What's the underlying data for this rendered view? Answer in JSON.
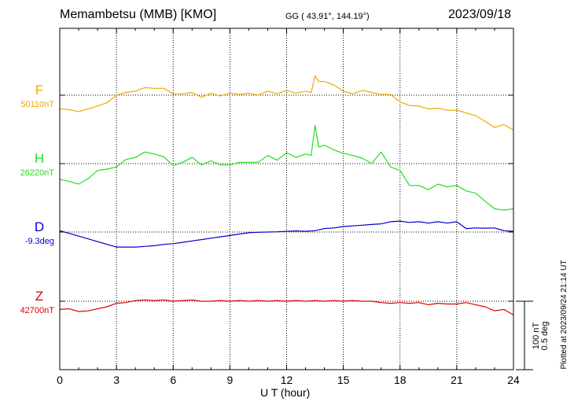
{
  "header": {
    "station": "Memambetsu (MMB)  [KMO]",
    "coords": "GG ( 43.91°, 144.19°)",
    "date": "2023/09/18"
  },
  "footer": {
    "plotted_note": "Plotted at 2023/09/24 21:14 UT"
  },
  "scale_bar": {
    "line1": "100 nT",
    "line2": "0.5 deg"
  },
  "chart_data": {
    "type": "line",
    "title": "",
    "xlabel": "U T (hour)",
    "ylabel": "",
    "xlim": [
      0,
      24
    ],
    "x_ticks": [
      0,
      3,
      6,
      9,
      12,
      15,
      18,
      21,
      24
    ],
    "grid": true,
    "series": [
      {
        "name": "F",
        "baseline_label": "50110nT",
        "color": "#f0a800",
        "x": [
          0,
          0.5,
          1,
          1.5,
          2,
          2.5,
          3,
          3.5,
          4,
          4.5,
          5,
          5.5,
          6,
          6.5,
          7,
          7.5,
          8,
          8.5,
          9,
          9.5,
          10,
          10.5,
          11,
          11.5,
          12,
          12.5,
          13,
          13.3,
          13.5,
          13.7,
          14,
          14.5,
          15,
          15.5,
          16,
          16.5,
          17,
          17.5,
          18,
          18.5,
          19,
          19.5,
          20,
          20.5,
          21,
          21.5,
          22,
          22.5,
          23,
          23.5,
          24
        ],
        "values": [
          -20,
          -21,
          -24,
          -20,
          -16,
          -11,
          0,
          4,
          6,
          11,
          10,
          10,
          2,
          2,
          4,
          -3,
          3,
          -1,
          3,
          1,
          3,
          0,
          6,
          2,
          7,
          3,
          6,
          4,
          28,
          20,
          20,
          15,
          6,
          2,
          7,
          4,
          1,
          1,
          -10,
          -15,
          -16,
          -20,
          -19,
          -22,
          -22,
          -26,
          -30,
          -38,
          -47,
          -43,
          -51
        ]
      },
      {
        "name": "H",
        "baseline_label": "26220nT",
        "color": "#22dd22",
        "x": [
          0,
          0.5,
          1,
          1.5,
          2,
          2.5,
          3,
          3.5,
          4,
          4.5,
          5,
          5.5,
          6,
          6.5,
          7,
          7.5,
          8,
          8.5,
          9,
          9.5,
          10,
          10.5,
          11,
          11.5,
          12,
          12.5,
          13,
          13.3,
          13.5,
          13.7,
          14,
          14.5,
          15,
          15.5,
          16,
          16.5,
          17,
          17.5,
          18,
          18.5,
          19,
          19.5,
          20,
          20.5,
          21,
          21.5,
          22,
          22.5,
          23,
          23.5,
          24
        ],
        "values": [
          -23,
          -26,
          -30,
          -22,
          -10,
          -8,
          -5,
          6,
          9,
          17,
          14,
          10,
          -3,
          2,
          9,
          -2,
          4,
          -2,
          -2,
          2,
          2,
          2,
          12,
          5,
          16,
          9,
          14,
          12,
          56,
          24,
          27,
          20,
          15,
          12,
          8,
          0,
          17,
          -5,
          -10,
          -32,
          -32,
          -38,
          -30,
          -34,
          -32,
          -40,
          -43,
          -55,
          -66,
          -68,
          -66
        ]
      },
      {
        "name": "D",
        "baseline_label": "-9.3deg",
        "color": "#0000cc",
        "x": [
          0,
          0.5,
          1,
          1.5,
          2,
          2.5,
          3,
          3.5,
          4,
          4.5,
          5,
          5.5,
          6,
          6.5,
          7,
          7.5,
          8,
          8.5,
          9,
          9.5,
          10,
          10.5,
          11,
          11.5,
          12,
          12.5,
          13,
          13.5,
          14,
          14.5,
          15,
          15.5,
          16,
          16.5,
          17,
          17.5,
          18,
          18.5,
          19,
          19.5,
          20,
          20.5,
          21,
          21.5,
          22,
          22.5,
          23,
          23.5,
          24
        ],
        "values": [
          0.01,
          -0.01,
          -0.03,
          -0.05,
          -0.07,
          -0.09,
          -0.11,
          -0.11,
          -0.11,
          -0.105,
          -0.1,
          -0.09,
          -0.085,
          -0.075,
          -0.065,
          -0.055,
          -0.045,
          -0.035,
          -0.025,
          -0.015,
          -0.005,
          -0.002,
          0,
          0.002,
          0.005,
          0.008,
          0.005,
          0.01,
          0.025,
          0.03,
          0.04,
          0.045,
          0.05,
          0.055,
          0.06,
          0.075,
          0.08,
          0.07,
          0.075,
          0.065,
          0.075,
          0.065,
          0.075,
          0.025,
          0.03,
          0.028,
          0.03,
          0.01,
          0.005
        ]
      },
      {
        "name": "Z",
        "baseline_label": "42700nT",
        "color": "#dd0000",
        "x": [
          0,
          0.5,
          1,
          1.5,
          2,
          2.5,
          3,
          3.5,
          4,
          4.5,
          5,
          5.5,
          6,
          6.5,
          7,
          7.5,
          8,
          8.5,
          9,
          9.5,
          10,
          10.5,
          11,
          11.5,
          12,
          12.5,
          13,
          13.5,
          14,
          14.5,
          15,
          15.5,
          16,
          16.5,
          17,
          17.5,
          18,
          18.5,
          19,
          19.5,
          20,
          20.5,
          21,
          21.5,
          22,
          22.5,
          23,
          23.5,
          24
        ],
        "values": [
          -12,
          -11,
          -15,
          -14,
          -11,
          -8,
          -3,
          -2,
          1,
          2,
          1,
          2,
          0,
          1,
          2,
          0,
          0,
          1,
          0,
          1,
          0,
          1,
          0,
          1,
          0,
          1,
          0,
          1,
          0,
          1,
          0,
          1,
          0,
          0,
          -2,
          -3,
          -2,
          -3,
          -2,
          -5,
          -3,
          -4,
          -4,
          -2,
          -5,
          -8,
          -14,
          -12,
          -20
        ]
      }
    ]
  }
}
